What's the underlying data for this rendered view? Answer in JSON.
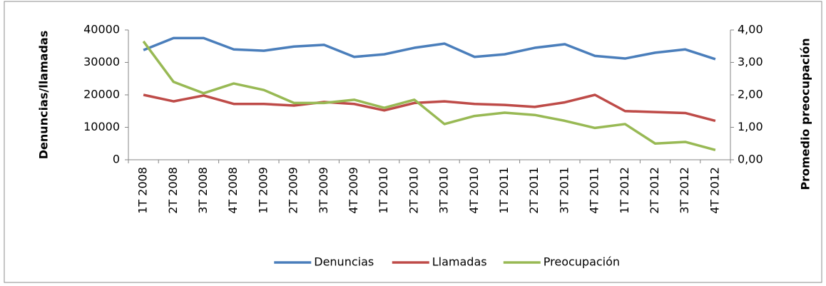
{
  "chart_data": {
    "type": "line",
    "y_label": "Denuncias/llamadas",
    "y2_label": "Promedio preocupación",
    "categories": [
      "1T 2008",
      "2T 2008",
      "3T 2008",
      "4T 2008",
      "1T 2009",
      "2T 2009",
      "3T 2009",
      "4T 2009",
      "1T 2010",
      "2T 2010",
      "3T 2010",
      "4T 2010",
      "1T 2011",
      "2T 2011",
      "3T 2011",
      "4T 2011",
      "1T 2012",
      "2T 2012",
      "3T 2012",
      "4T 2012"
    ],
    "series": [
      {
        "name": "Denuncias",
        "color": "#4a7ebb",
        "values": [
          33800,
          37500,
          37500,
          34000,
          33600,
          34900,
          35400,
          31700,
          32500,
          34500,
          35800,
          31700,
          32500,
          34500,
          35600,
          32000,
          31200,
          33000,
          34000,
          31000
        ]
      },
      {
        "name": "Llamadas",
        "color": "#be4b48",
        "values": [
          20000,
          18000,
          19800,
          17200,
          17200,
          16700,
          17800,
          17200,
          15200,
          17500,
          18000,
          17200,
          16900,
          16300,
          17700,
          20000,
          15000,
          14700,
          14400,
          12000
        ]
      },
      {
        "name": "Preocupación",
        "color": "#98b954",
        "axis": "y2",
        "values": [
          3.65,
          2.4,
          2.05,
          2.35,
          2.15,
          1.75,
          1.75,
          1.85,
          1.6,
          1.85,
          1.1,
          1.35,
          1.45,
          1.38,
          1.2,
          0.98,
          1.1,
          0.5,
          0.55,
          0.3
        ]
      }
    ],
    "ylim": [
      0,
      40000
    ],
    "yticks": [
      0,
      10000,
      20000,
      30000,
      40000
    ],
    "y2lim": [
      0,
      4
    ],
    "y2ticks": [
      {
        "value": 0,
        "label": "0,00"
      },
      {
        "value": 1,
        "label": "1,00"
      },
      {
        "value": 2,
        "label": "2,00"
      },
      {
        "value": 3,
        "label": "3,00"
      },
      {
        "value": 4,
        "label": "4,00"
      }
    ],
    "grid": false,
    "legend": "bottom"
  }
}
